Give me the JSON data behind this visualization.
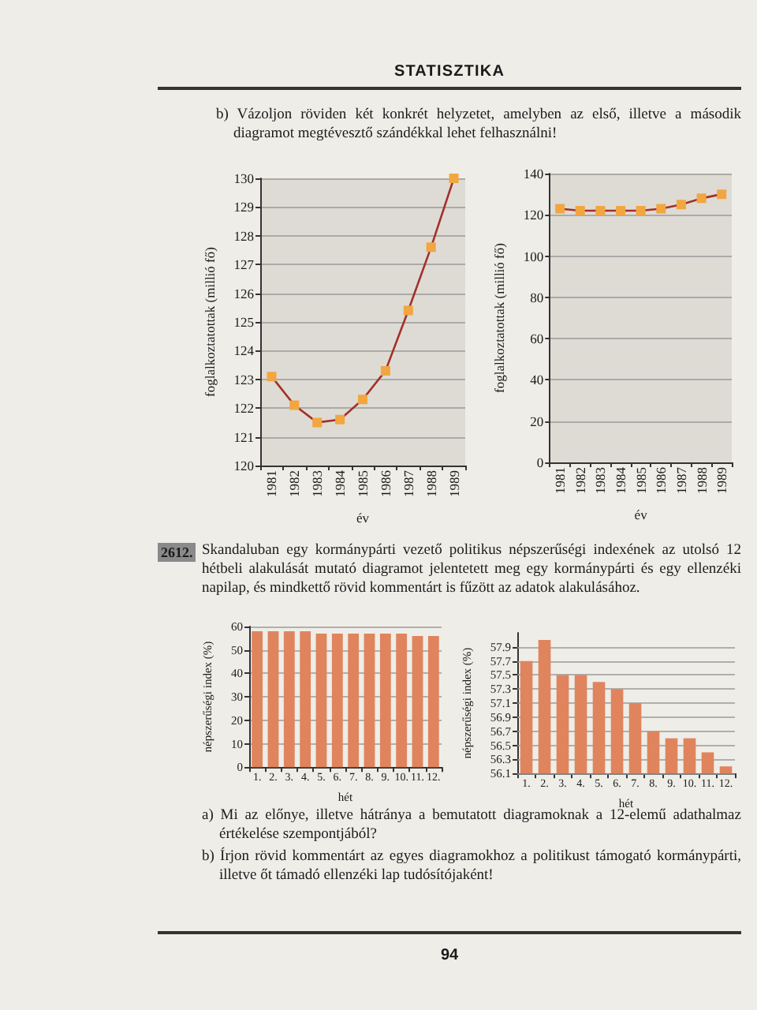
{
  "chart_data": [
    {
      "type": "line",
      "categories": [
        "1981",
        "1982",
        "1983",
        "1984",
        "1985",
        "1986",
        "1987",
        "1988",
        "1989"
      ],
      "values": [
        123.1,
        122.1,
        121.5,
        121.6,
        122.3,
        123.3,
        125.4,
        127.6,
        130.0
      ],
      "color": "#a3302a",
      "colors": [
        "#f2a640",
        "#f2a640",
        "#f2a640",
        "#f2a640",
        "#f2a640",
        "#f2a640",
        "#f2a640",
        "#f2a640",
        "#f2a640"
      ],
      "marker": "square",
      "xlabel": "év",
      "ylabel": "foglalkoztatottak (millió fő)",
      "ylim": [
        120,
        130
      ],
      "yticks": [
        120,
        121,
        122,
        123,
        124,
        125,
        126,
        127,
        128,
        129,
        130
      ],
      "grid": "y",
      "annotations": [
        "STATISZTIKA",
        "b) Vázoljon röviden két konkrét helyzetet, amelyben az első, illetve a második diagramot megtévesztő szándékkal lehet felhasználni!"
      ]
    },
    {
      "type": "line",
      "categories": [
        "1981",
        "1982",
        "1983",
        "1984",
        "1985",
        "1986",
        "1987",
        "1988",
        "1989"
      ],
      "values": [
        123,
        122,
        122,
        122,
        122,
        123,
        125,
        128,
        130
      ],
      "color": "#a3302a",
      "colors": [
        "#f2a640",
        "#f2a640",
        "#f2a640",
        "#f2a640",
        "#f2a640",
        "#f2a640",
        "#f2a640",
        "#f2a640",
        "#f2a640"
      ],
      "marker": "square",
      "xlabel": "év",
      "ylabel": "foglalkoztatottak (millió fő)",
      "ylim": [
        0,
        140
      ],
      "yticks": [
        0,
        20,
        40,
        60,
        80,
        100,
        120,
        140
      ],
      "grid": "y"
    },
    {
      "type": "bar",
      "categories": [
        "1.",
        "2.",
        "3.",
        "4.",
        "5.",
        "6.",
        "7.",
        "8.",
        "9.",
        "10.",
        "11.",
        "12."
      ],
      "values": [
        58,
        58,
        58,
        58,
        57,
        57,
        57,
        57,
        57,
        57,
        56,
        56
      ],
      "color": "#e0845e",
      "xlabel": "hét",
      "ylabel": "népszerűségi index (%)",
      "ylim": [
        0,
        60
      ],
      "yticks": [
        0,
        10,
        20,
        30,
        40,
        50,
        60
      ],
      "grid": "y",
      "annotations": [
        "2612.",
        "Skandaluban egy kormánypárti vezető politikus népszerűségi indexének az utolsó 12 hétbeli alakulását mutató diagramot jelentetett meg egy kormánypárti és egy ellenzéki napilap, és mindkettő rövid kommentárt is fűzött az adatok alakulásához."
      ]
    },
    {
      "type": "bar",
      "categories": [
        "1.",
        "2.",
        "3.",
        "4.",
        "5.",
        "6.",
        "7.",
        "8.",
        "9.",
        "10.",
        "11.",
        "12."
      ],
      "values": [
        57.7,
        58.0,
        57.5,
        57.5,
        57.4,
        57.3,
        57.1,
        56.7,
        56.6,
        56.6,
        56.4,
        56.2
      ],
      "color": "#e0845e",
      "xlabel": "hét",
      "ylabel": "népszerűségi index (%)",
      "ylim": [
        56.1,
        58.1
      ],
      "yticks": [
        56.1,
        56.3,
        56.5,
        56.7,
        56.9,
        57.1,
        57.3,
        57.5,
        57.7,
        57.9
      ],
      "grid": "y",
      "annotations": [
        "a) Mi az előnye, illetve hátránya a bemutatott diagramoknak a 12-elemű adathalmaz értékelése szempontjából?",
        "b) Írjon rövid kommentárt az egyes diagramokhoz a politikust támogató kormánypárti, illetve őt támadó ellenzéki lap tudósítójaként!",
        "94"
      ]
    }
  ]
}
